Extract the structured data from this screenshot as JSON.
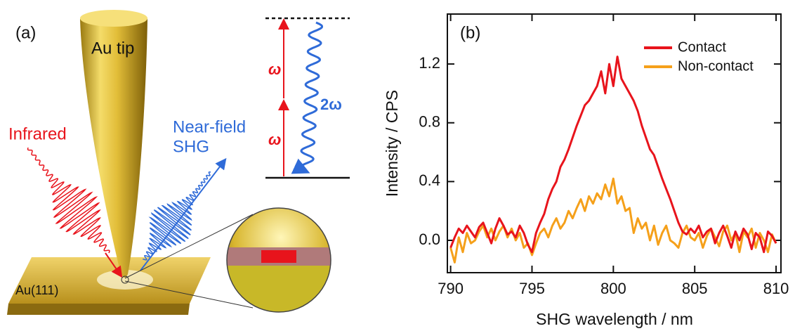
{
  "panel_a": {
    "label": "(a)",
    "tip_label": "Au tip",
    "infrared": "Infrared",
    "near_field": "Near-field",
    "shg": "SHG",
    "omega_upper": "ω",
    "omega_lower": "ω",
    "two_omega": "2ω",
    "substrate": "Au(111)"
  },
  "chart_data": {
    "type": "line",
    "panel_label": "(b)",
    "xlabel": "SHG wavelength / nm",
    "ylabel": "Intensity / CPS",
    "x": [
      790,
      790.25,
      790.5,
      790.75,
      791,
      791.25,
      791.5,
      791.75,
      792,
      792.25,
      792.5,
      792.75,
      793,
      793.25,
      793.5,
      793.75,
      794,
      794.25,
      794.5,
      794.75,
      795,
      795.25,
      795.5,
      795.75,
      796,
      796.25,
      796.5,
      796.75,
      797,
      797.25,
      797.5,
      797.75,
      798,
      798.25,
      798.5,
      798.75,
      799,
      799.25,
      799.5,
      799.75,
      800,
      800.25,
      800.5,
      800.75,
      801,
      801.25,
      801.5,
      801.75,
      802,
      802.25,
      802.5,
      802.75,
      803,
      803.25,
      803.5,
      803.75,
      804,
      804.25,
      804.5,
      804.75,
      805,
      805.25,
      805.5,
      805.75,
      806,
      806.25,
      806.5,
      806.75,
      807,
      807.25,
      807.5,
      807.75,
      808,
      808.25,
      808.5,
      808.75,
      809,
      809.25,
      809.5,
      809.75,
      810
    ],
    "series": [
      {
        "name": "Contact",
        "color": "#e8141c",
        "values": [
          -0.05,
          0.02,
          0.08,
          0.05,
          0.1,
          0.06,
          0.02,
          0.09,
          0.12,
          0.05,
          -0.02,
          0.08,
          0.15,
          0.1,
          0.04,
          0.06,
          0.02,
          0.1,
          0.05,
          -0.03,
          -0.08,
          0.05,
          0.12,
          0.18,
          0.28,
          0.35,
          0.4,
          0.5,
          0.55,
          0.62,
          0.7,
          0.78,
          0.85,
          0.92,
          0.95,
          1.0,
          1.05,
          1.15,
          1.0,
          1.2,
          1.05,
          1.25,
          1.1,
          1.05,
          1.0,
          0.95,
          0.88,
          0.78,
          0.7,
          0.62,
          0.58,
          0.5,
          0.42,
          0.35,
          0.28,
          0.2,
          0.12,
          0.06,
          0.04,
          0.08,
          0.05,
          0.1,
          0.02,
          0.06,
          0.08,
          -0.02,
          0.05,
          0.1,
          0.03,
          -0.05,
          0.06,
          0.0,
          0.08,
          0.04,
          -0.06,
          0.05,
          0.02,
          -0.08,
          0.06,
          0.03,
          -0.02
        ]
      },
      {
        "name": "Non-contact",
        "color": "#f5a01a",
        "values": [
          -0.05,
          -0.15,
          0.02,
          -0.08,
          0.05,
          -0.02,
          0.0,
          0.06,
          0.1,
          0.02,
          0.08,
          0.0,
          0.06,
          0.1,
          0.02,
          0.08,
          0.0,
          0.05,
          -0.05,
          -0.02,
          -0.1,
          -0.02,
          0.05,
          0.08,
          0.02,
          0.1,
          0.15,
          0.08,
          0.12,
          0.2,
          0.15,
          0.22,
          0.28,
          0.2,
          0.3,
          0.25,
          0.32,
          0.28,
          0.38,
          0.3,
          0.42,
          0.25,
          0.3,
          0.2,
          0.22,
          0.05,
          0.15,
          0.08,
          0.12,
          0.0,
          0.1,
          -0.03,
          0.05,
          0.1,
          0.0,
          -0.02,
          -0.05,
          0.05,
          0.1,
          0.02,
          0.0,
          0.05,
          -0.05,
          0.03,
          0.08,
          0.02,
          -0.04,
          0.06,
          0.1,
          0.0,
          0.05,
          -0.08,
          0.06,
          0.02,
          0.08,
          -0.05,
          0.05,
          0.0,
          -0.08,
          0.04,
          -0.02
        ]
      }
    ],
    "xlim": [
      789.8,
      810.3
    ],
    "xticks": [
      790,
      795,
      800,
      805,
      810
    ],
    "ylim": [
      -0.22,
      1.54
    ],
    "yticks": [
      {
        "value": 0,
        "label": "0.0"
      },
      0.4,
      0.8,
      1.2
    ],
    "legend": "upper right"
  }
}
